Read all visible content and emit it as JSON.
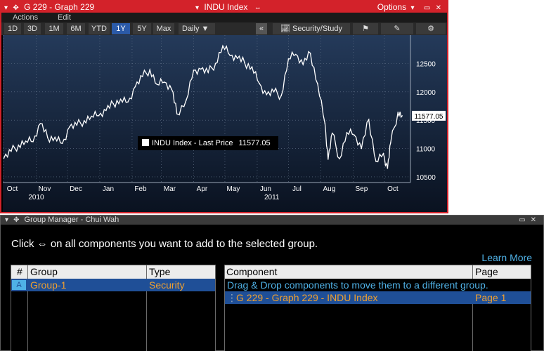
{
  "graph_window": {
    "title": "G 229 - Graph 229",
    "security_label": "INDU Index",
    "options_label": "Options",
    "menu": [
      "Actions",
      "Edit"
    ],
    "ranges": [
      "1D",
      "3D",
      "1M",
      "6M",
      "YTD",
      "1Y",
      "5Y",
      "Max"
    ],
    "active_range": "1Y",
    "frequency_label": "Daily",
    "frequency_arrow": "▼",
    "collapse_label": "«",
    "security_study_label": "Security/Study",
    "legend_label": "INDU Index - Last Price",
    "legend_value": "11577.05",
    "last_price_tag": "11577.05"
  },
  "chart_data": {
    "type": "line",
    "series": [
      {
        "name": "INDU Index - Last Price",
        "color": "#ffffff",
        "x": [
          "2010-10-01",
          "2010-10-08",
          "2010-10-15",
          "2010-10-22",
          "2010-10-29",
          "2010-11-05",
          "2010-11-12",
          "2010-11-19",
          "2010-11-26",
          "2010-12-03",
          "2010-12-10",
          "2010-12-17",
          "2010-12-24",
          "2010-12-31",
          "2011-01-07",
          "2011-01-14",
          "2011-01-21",
          "2011-01-28",
          "2011-02-04",
          "2011-02-11",
          "2011-02-18",
          "2011-02-25",
          "2011-03-04",
          "2011-03-11",
          "2011-03-16",
          "2011-03-25",
          "2011-04-01",
          "2011-04-08",
          "2011-04-15",
          "2011-04-22",
          "2011-04-29",
          "2011-05-06",
          "2011-05-13",
          "2011-05-20",
          "2011-05-27",
          "2011-06-03",
          "2011-06-10",
          "2011-06-17",
          "2011-06-24",
          "2011-07-01",
          "2011-07-08",
          "2011-07-15",
          "2011-07-22",
          "2011-07-29",
          "2011-08-05",
          "2011-08-08",
          "2011-08-12",
          "2011-08-19",
          "2011-08-26",
          "2011-09-02",
          "2011-09-09",
          "2011-09-16",
          "2011-09-23",
          "2011-09-30",
          "2011-10-04",
          "2011-10-07",
          "2011-10-14",
          "2011-10-18"
        ],
        "y": [
          10830,
          10950,
          11060,
          11130,
          11120,
          11440,
          11190,
          11200,
          11090,
          11380,
          11410,
          11490,
          11570,
          11580,
          11670,
          11790,
          11870,
          11820,
          12090,
          12270,
          12390,
          12130,
          12170,
          12040,
          11610,
          11860,
          12380,
          12400,
          12340,
          12500,
          12810,
          12640,
          12590,
          12510,
          12440,
          12150,
          11950,
          12000,
          11930,
          12580,
          12660,
          12480,
          12680,
          12140,
          11440,
          10810,
          11270,
          10820,
          11280,
          11240,
          11000,
          11510,
          10770,
          10910,
          10650,
          11100,
          11640,
          11577.05
        ]
      }
    ],
    "x_tick_labels": [
      "Oct",
      "Nov",
      "Dec",
      "Jan",
      "Feb",
      "Mar",
      "Apr",
      "May",
      "Jun",
      "Jul",
      "Aug",
      "Sep",
      "Oct"
    ],
    "x_year_labels": [
      "2010",
      "2011"
    ],
    "y_ticks": [
      10500,
      11000,
      11500,
      12000,
      12500
    ],
    "ylim": [
      10400,
      13000
    ],
    "y_axis_side": "right",
    "grid": true,
    "legend": "center"
  },
  "group_manager": {
    "title": "Group Manager - Chui Wah",
    "instruction": "Click ⇔ on all components you want to add to the selected group.",
    "learn_more": "Learn More",
    "groups_table": {
      "headers": [
        "#",
        "Group",
        "Type"
      ],
      "rows": [
        {
          "id": "A",
          "group": "Group-1",
          "type": "Security"
        }
      ]
    },
    "components_table": {
      "headers": [
        "Component",
        "Page"
      ],
      "hint": "Drag & Drop components to move them to a different group.",
      "rows": [
        {
          "component": "G 229 - Graph 229 - INDU Index",
          "page": "Page 1"
        }
      ]
    }
  },
  "colors": {
    "accent_red": "#d3222a",
    "selection_blue": "#1f4f97",
    "link_blue": "#4fb1e6",
    "orange_text": "#f0a030"
  }
}
